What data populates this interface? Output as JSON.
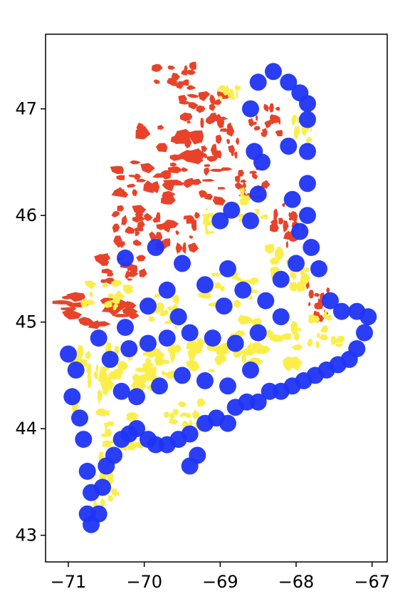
{
  "chart_data": {
    "type": "map",
    "title": "",
    "xlabel": "",
    "ylabel": "",
    "xlim": [
      -71.3,
      -66.8
    ],
    "ylim": [
      42.75,
      47.7
    ],
    "xticks": [
      -71,
      -70,
      -69,
      -68,
      -67
    ],
    "xtick_labels": [
      "−71",
      "−70",
      "−69",
      "−68",
      "−67"
    ],
    "yticks": [
      43,
      44,
      45,
      46,
      47
    ],
    "ytick_labels": [
      "43",
      "44",
      "45",
      "46",
      "47"
    ],
    "grid": false,
    "legend": "none",
    "colors": {
      "red_layer": "#e8432a",
      "yellow_layer": "#fbee4b",
      "blue_points": "#1f34f5",
      "axes": "#000000"
    },
    "layers": [
      {
        "kind": "polygons",
        "color_key": "red_layer",
        "regions": [
          [
            -69.6,
            47.3,
            0.5,
            0.22
          ],
          [
            -69.2,
            47.0,
            0.6,
            0.3
          ],
          [
            -69.6,
            46.6,
            0.9,
            0.45
          ],
          [
            -70.0,
            46.3,
            0.7,
            0.4
          ],
          [
            -69.3,
            46.3,
            0.8,
            0.35
          ],
          [
            -70.1,
            45.9,
            0.6,
            0.35
          ],
          [
            -69.6,
            45.8,
            0.6,
            0.4
          ],
          [
            -70.3,
            45.5,
            0.7,
            0.25
          ],
          [
            -70.6,
            45.1,
            1.0,
            0.3
          ],
          [
            -69.0,
            46.7,
            0.5,
            0.4
          ],
          [
            -68.6,
            46.3,
            0.4,
            0.3
          ],
          [
            -68.1,
            45.9,
            0.4,
            0.4
          ],
          [
            -67.7,
            45.2,
            0.3,
            0.35
          ],
          [
            -68.4,
            46.9,
            0.4,
            0.3
          ]
        ]
      },
      {
        "kind": "polygons",
        "color_key": "yellow_layer",
        "regions": [
          [
            -70.7,
            44.4,
            0.5,
            0.7
          ],
          [
            -70.2,
            44.5,
            0.7,
            0.5
          ],
          [
            -69.7,
            44.6,
            0.8,
            0.45
          ],
          [
            -69.0,
            44.7,
            0.8,
            0.4
          ],
          [
            -68.4,
            44.8,
            0.8,
            0.45
          ],
          [
            -67.7,
            44.9,
            0.6,
            0.35
          ],
          [
            -70.3,
            44.0,
            0.6,
            0.35
          ],
          [
            -69.5,
            44.1,
            0.5,
            0.3
          ],
          [
            -70.5,
            43.5,
            0.3,
            0.45
          ],
          [
            -70.5,
            45.25,
            0.6,
            0.25
          ],
          [
            -69.8,
            45.1,
            0.5,
            0.3
          ],
          [
            -68.9,
            45.3,
            0.7,
            0.3
          ],
          [
            -68.1,
            45.5,
            0.5,
            0.4
          ],
          [
            -68.6,
            46.1,
            0.4,
            0.3
          ],
          [
            -67.9,
            46.8,
            0.3,
            0.4
          ],
          [
            -68.9,
            47.15,
            0.3,
            0.12
          ],
          [
            -69.15,
            45.95,
            0.12,
            0.22
          ]
        ]
      },
      {
        "kind": "points",
        "color_key": "blue_points",
        "points": [
          [
            -71.0,
            44.7
          ],
          [
            -70.9,
            44.55
          ],
          [
            -70.95,
            44.3
          ],
          [
            -70.85,
            44.1
          ],
          [
            -70.8,
            43.9
          ],
          [
            -70.75,
            43.6
          ],
          [
            -70.7,
            43.4
          ],
          [
            -70.75,
            43.2
          ],
          [
            -70.7,
            43.1
          ],
          [
            -70.6,
            43.2
          ],
          [
            -70.55,
            43.45
          ],
          [
            -70.5,
            43.65
          ],
          [
            -70.4,
            43.75
          ],
          [
            -70.3,
            43.9
          ],
          [
            -70.2,
            43.95
          ],
          [
            -70.1,
            44.0
          ],
          [
            -69.95,
            43.9
          ],
          [
            -69.85,
            43.85
          ],
          [
            -69.7,
            43.85
          ],
          [
            -69.55,
            43.9
          ],
          [
            -69.4,
            43.95
          ],
          [
            -69.3,
            43.75
          ],
          [
            -69.2,
            44.05
          ],
          [
            -69.05,
            44.1
          ],
          [
            -68.9,
            44.05
          ],
          [
            -68.8,
            44.2
          ],
          [
            -68.65,
            44.25
          ],
          [
            -68.5,
            44.25
          ],
          [
            -68.35,
            44.35
          ],
          [
            -68.2,
            44.35
          ],
          [
            -68.05,
            44.4
          ],
          [
            -67.9,
            44.45
          ],
          [
            -67.75,
            44.5
          ],
          [
            -67.6,
            44.55
          ],
          [
            -67.45,
            44.6
          ],
          [
            -67.3,
            44.65
          ],
          [
            -67.2,
            44.75
          ],
          [
            -67.1,
            44.9
          ],
          [
            -67.05,
            45.05
          ],
          [
            -67.2,
            45.1
          ],
          [
            -67.4,
            45.1
          ],
          [
            -67.55,
            45.2
          ],
          [
            -67.7,
            45.5
          ],
          [
            -67.8,
            45.7
          ],
          [
            -67.85,
            46.0
          ],
          [
            -67.85,
            46.3
          ],
          [
            -67.85,
            46.6
          ],
          [
            -67.85,
            46.9
          ],
          [
            -67.85,
            47.05
          ],
          [
            -67.95,
            47.15
          ],
          [
            -68.1,
            47.25
          ],
          [
            -68.3,
            47.35
          ],
          [
            -68.5,
            47.25
          ],
          [
            -68.6,
            47.0
          ],
          [
            -68.55,
            46.6
          ],
          [
            -68.5,
            46.2
          ],
          [
            -68.6,
            45.95
          ],
          [
            -68.85,
            46.05
          ],
          [
            -69.0,
            45.95
          ],
          [
            -68.9,
            45.5
          ],
          [
            -68.7,
            45.3
          ],
          [
            -68.4,
            45.2
          ],
          [
            -68.2,
            45.4
          ],
          [
            -68.0,
            45.55
          ],
          [
            -67.95,
            45.85
          ],
          [
            -68.05,
            46.15
          ],
          [
            -68.2,
            45.05
          ],
          [
            -68.5,
            44.9
          ],
          [
            -68.8,
            44.8
          ],
          [
            -69.1,
            44.85
          ],
          [
            -69.4,
            44.9
          ],
          [
            -69.7,
            44.85
          ],
          [
            -69.95,
            44.8
          ],
          [
            -70.2,
            44.75
          ],
          [
            -70.45,
            44.65
          ],
          [
            -70.3,
            44.35
          ],
          [
            -70.1,
            44.3
          ],
          [
            -69.8,
            44.4
          ],
          [
            -69.5,
            44.5
          ],
          [
            -69.2,
            44.45
          ],
          [
            -68.9,
            44.4
          ],
          [
            -68.6,
            44.55
          ],
          [
            -70.25,
            45.6
          ],
          [
            -69.85,
            45.7
          ],
          [
            -69.5,
            45.55
          ],
          [
            -69.7,
            45.3
          ],
          [
            -69.95,
            45.15
          ],
          [
            -69.2,
            45.35
          ],
          [
            -68.45,
            46.5
          ],
          [
            -68.1,
            46.65
          ],
          [
            -69.4,
            43.65
          ],
          [
            -70.6,
            44.85
          ],
          [
            -70.25,
            44.95
          ],
          [
            -69.55,
            45.05
          ],
          [
            -68.95,
            45.15
          ]
        ]
      }
    ]
  }
}
